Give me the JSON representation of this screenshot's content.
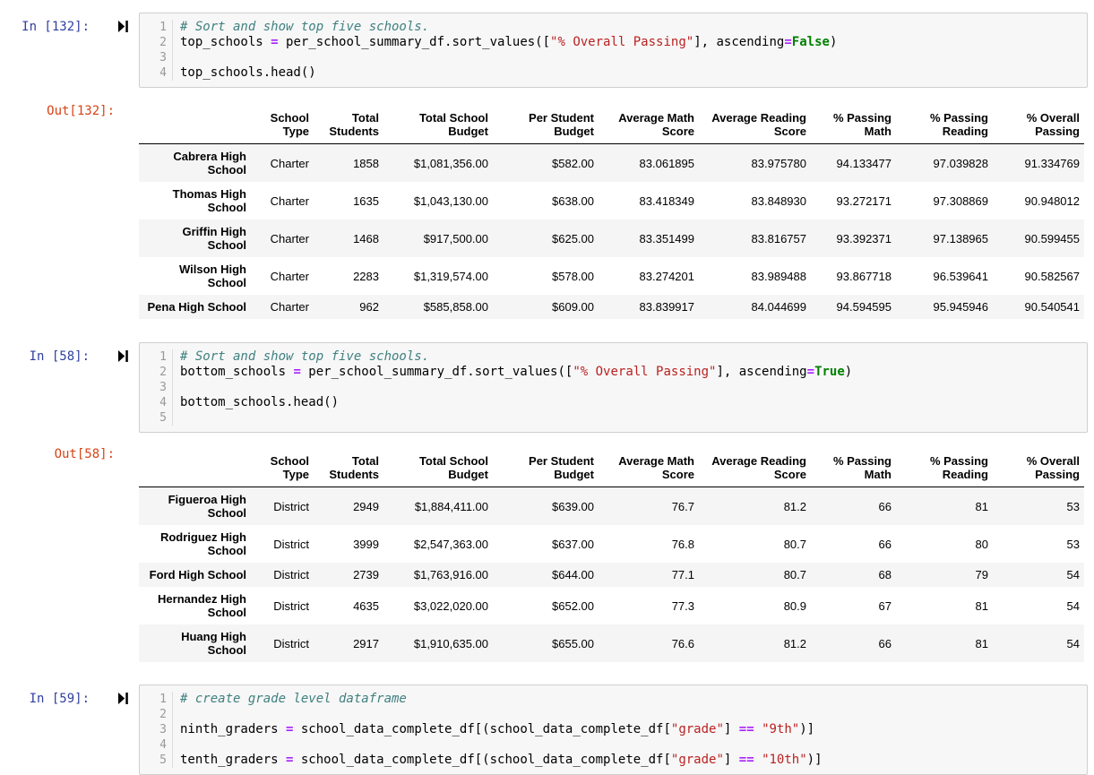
{
  "colors": {
    "prompt_in": "#303F9F",
    "prompt_out": "#D84315",
    "cell_background": "#F7F7F7",
    "cell_border": "#CFCFCF",
    "comment": "#408080",
    "string": "#BA2121",
    "operator": "#AA22FF",
    "keyword": "#008000",
    "row_stripe": "#F5F5F5"
  },
  "cells": [
    {
      "kind": "code",
      "prompt": "In [132]:",
      "lines": [
        [
          {
            "c": "com",
            "t": "# Sort and show top five schools."
          }
        ],
        [
          {
            "c": "",
            "t": "top_schools "
          },
          {
            "c": "op",
            "t": "="
          },
          {
            "c": "",
            "t": " per_school_summary_df.sort_values(["
          },
          {
            "c": "str",
            "t": "\"% Overall Passing\""
          },
          {
            "c": "",
            "t": "], ascending"
          },
          {
            "c": "op",
            "t": "="
          },
          {
            "c": "kw",
            "t": "False"
          },
          {
            "c": "",
            "t": ")"
          }
        ],
        [],
        [
          {
            "c": "",
            "t": "top_schools.head()"
          }
        ]
      ]
    },
    {
      "kind": "output",
      "prompt": "Out[132]:",
      "table": {
        "index_header": "",
        "columns": [
          "School Type",
          "Total Students",
          "Total School Budget",
          "Per Student Budget",
          "Average Math Score",
          "Average Reading Score",
          "% Passing Math",
          "% Passing Reading",
          "% Overall Passing"
        ],
        "rows": [
          {
            "index": "Cabrera High School",
            "values": [
              "Charter",
              "1858",
              "$1,081,356.00",
              "$582.00",
              "83.061895",
              "83.975780",
              "94.133477",
              "97.039828",
              "91.334769"
            ]
          },
          {
            "index": "Thomas High School",
            "values": [
              "Charter",
              "1635",
              "$1,043,130.00",
              "$638.00",
              "83.418349",
              "83.848930",
              "93.272171",
              "97.308869",
              "90.948012"
            ]
          },
          {
            "index": "Griffin High School",
            "values": [
              "Charter",
              "1468",
              "$917,500.00",
              "$625.00",
              "83.351499",
              "83.816757",
              "93.392371",
              "97.138965",
              "90.599455"
            ]
          },
          {
            "index": "Wilson High School",
            "values": [
              "Charter",
              "2283",
              "$1,319,574.00",
              "$578.00",
              "83.274201",
              "83.989488",
              "93.867718",
              "96.539641",
              "90.582567"
            ]
          },
          {
            "index": "Pena High School",
            "values": [
              "Charter",
              "962",
              "$585,858.00",
              "$609.00",
              "83.839917",
              "84.044699",
              "94.594595",
              "95.945946",
              "90.540541"
            ]
          }
        ]
      }
    },
    {
      "kind": "code",
      "prompt": "In [58]:",
      "lines": [
        [
          {
            "c": "com",
            "t": "# Sort and show top five schools."
          }
        ],
        [
          {
            "c": "",
            "t": "bottom_schools "
          },
          {
            "c": "op",
            "t": "="
          },
          {
            "c": "",
            "t": " per_school_summary_df.sort_values(["
          },
          {
            "c": "str",
            "t": "\"% Overall Passing\""
          },
          {
            "c": "",
            "t": "], ascending"
          },
          {
            "c": "op",
            "t": "="
          },
          {
            "c": "kw",
            "t": "True"
          },
          {
            "c": "",
            "t": ")"
          }
        ],
        [],
        [
          {
            "c": "",
            "t": "bottom_schools.head()"
          }
        ],
        []
      ]
    },
    {
      "kind": "output",
      "prompt": "Out[58]:",
      "table": {
        "index_header": "",
        "columns": [
          "School Type",
          "Total Students",
          "Total School Budget",
          "Per Student Budget",
          "Average Math Score",
          "Average Reading Score",
          "% Passing Math",
          "% Passing Reading",
          "% Overall Passing"
        ],
        "rows": [
          {
            "index": "Figueroa High School",
            "values": [
              "District",
              "2949",
              "$1,884,411.00",
              "$639.00",
              "76.7",
              "81.2",
              "66",
              "81",
              "53"
            ]
          },
          {
            "index": "Rodriguez High School",
            "values": [
              "District",
              "3999",
              "$2,547,363.00",
              "$637.00",
              "76.8",
              "80.7",
              "66",
              "80",
              "53"
            ]
          },
          {
            "index": "Ford High School",
            "values": [
              "District",
              "2739",
              "$1,763,916.00",
              "$644.00",
              "77.1",
              "80.7",
              "68",
              "79",
              "54"
            ]
          },
          {
            "index": "Hernandez High School",
            "values": [
              "District",
              "4635",
              "$3,022,020.00",
              "$652.00",
              "77.3",
              "80.9",
              "67",
              "81",
              "54"
            ]
          },
          {
            "index": "Huang High School",
            "values": [
              "District",
              "2917",
              "$1,910,635.00",
              "$655.00",
              "76.6",
              "81.2",
              "66",
              "81",
              "54"
            ]
          }
        ]
      }
    },
    {
      "kind": "code",
      "prompt": "In [59]:",
      "lines": [
        [
          {
            "c": "com",
            "t": "# create grade level dataframe"
          }
        ],
        [],
        [
          {
            "c": "",
            "t": "ninth_graders "
          },
          {
            "c": "op",
            "t": "="
          },
          {
            "c": "",
            "t": " school_data_complete_df[(school_data_complete_df["
          },
          {
            "c": "str",
            "t": "\"grade\""
          },
          {
            "c": "",
            "t": "] "
          },
          {
            "c": "op",
            "t": "=="
          },
          {
            "c": "",
            "t": " "
          },
          {
            "c": "str",
            "t": "\"9th\""
          },
          {
            "c": "",
            "t": ")]"
          }
        ],
        [],
        [
          {
            "c": "",
            "t": "tenth_graders "
          },
          {
            "c": "op",
            "t": "="
          },
          {
            "c": "",
            "t": " school_data_complete_df[(school_data_complete_df["
          },
          {
            "c": "str",
            "t": "\"grade\""
          },
          {
            "c": "",
            "t": "] "
          },
          {
            "c": "op",
            "t": "=="
          },
          {
            "c": "",
            "t": " "
          },
          {
            "c": "str",
            "t": "\"10th\""
          },
          {
            "c": "",
            "t": ")]"
          }
        ]
      ]
    }
  ]
}
